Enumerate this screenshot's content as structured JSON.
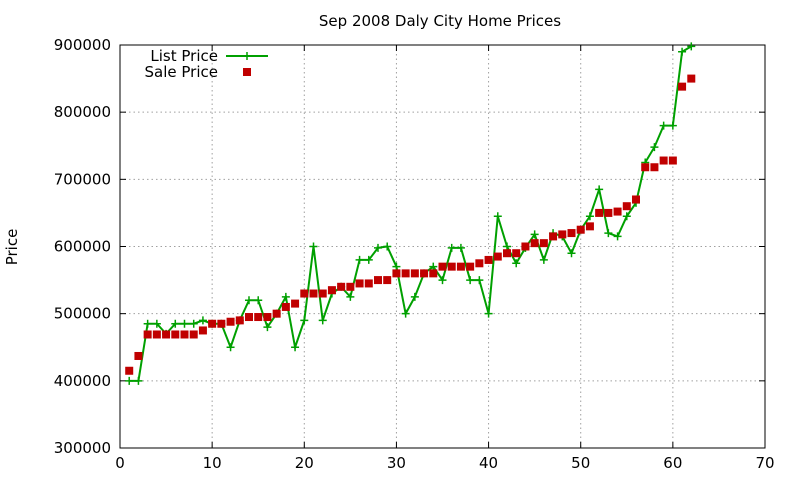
{
  "chart_data": {
    "type": "line",
    "title": "Sep 2008 Daly City Home Prices",
    "xlabel": "",
    "ylabel": "Price",
    "xlim": [
      0,
      70
    ],
    "ylim": [
      300000,
      900000
    ],
    "xticks": [
      "0",
      "10",
      "20",
      "30",
      "40",
      "50",
      "60",
      "70"
    ],
    "yticks": [
      "300000",
      "400000",
      "500000",
      "600000",
      "700000",
      "800000",
      "900000"
    ],
    "grid": true,
    "legend_position": "top-left",
    "series": [
      {
        "name": "List Price",
        "style": "line-with-plus-markers",
        "color": "#00a000",
        "x": [
          1,
          2,
          3,
          4,
          5,
          6,
          7,
          8,
          9,
          10,
          11,
          12,
          13,
          14,
          15,
          16,
          17,
          18,
          19,
          20,
          21,
          22,
          23,
          24,
          25,
          26,
          27,
          28,
          29,
          30,
          31,
          32,
          33,
          34,
          35,
          36,
          37,
          38,
          39,
          40,
          41,
          42,
          43,
          44,
          45,
          46,
          47,
          48,
          49,
          50,
          51,
          52,
          53,
          54,
          55,
          56,
          57,
          58,
          59,
          60,
          61,
          62
        ],
        "values": [
          400000,
          400000,
          485000,
          485000,
          470000,
          485000,
          485000,
          485000,
          490000,
          485000,
          485000,
          450000,
          490000,
          520000,
          520000,
          480000,
          500000,
          525000,
          450000,
          490000,
          600000,
          490000,
          530000,
          540000,
          525000,
          580000,
          580000,
          598000,
          600000,
          570000,
          500000,
          525000,
          560000,
          570000,
          550000,
          598000,
          598000,
          550000,
          550000,
          500000,
          645000,
          600000,
          575000,
          598000,
          618000,
          580000,
          620000,
          615000,
          590000,
          625000,
          645000,
          685000,
          620000,
          615000,
          645000,
          665000,
          725000,
          748000,
          780000,
          780000,
          890000,
          898000
        ]
      },
      {
        "name": "Sale Price",
        "style": "square-markers",
        "color": "#c00000",
        "x": [
          1,
          2,
          3,
          4,
          5,
          6,
          7,
          8,
          9,
          10,
          11,
          12,
          13,
          14,
          15,
          16,
          17,
          18,
          19,
          20,
          21,
          22,
          23,
          24,
          25,
          26,
          27,
          28,
          29,
          30,
          31,
          32,
          33,
          34,
          35,
          36,
          37,
          38,
          39,
          40,
          41,
          42,
          43,
          44,
          45,
          46,
          47,
          48,
          49,
          50,
          51,
          52,
          53,
          54,
          55,
          56,
          57,
          58,
          59,
          60,
          61,
          62
        ],
        "values": [
          415000,
          437000,
          469000,
          469000,
          469000,
          469000,
          469000,
          469000,
          475000,
          485000,
          485000,
          488000,
          490000,
          495000,
          495000,
          495000,
          500000,
          510000,
          515000,
          530000,
          530000,
          530000,
          535000,
          540000,
          540000,
          545000,
          545000,
          550000,
          550000,
          560000,
          560000,
          560000,
          560000,
          560000,
          570000,
          570000,
          570000,
          570000,
          575000,
          580000,
          585000,
          590000,
          590000,
          600000,
          605000,
          605000,
          615000,
          618000,
          620000,
          625000,
          630000,
          650000,
          650000,
          652000,
          660000,
          670000,
          718000,
          718000,
          728000,
          728000,
          838000,
          850000
        ]
      }
    ]
  }
}
